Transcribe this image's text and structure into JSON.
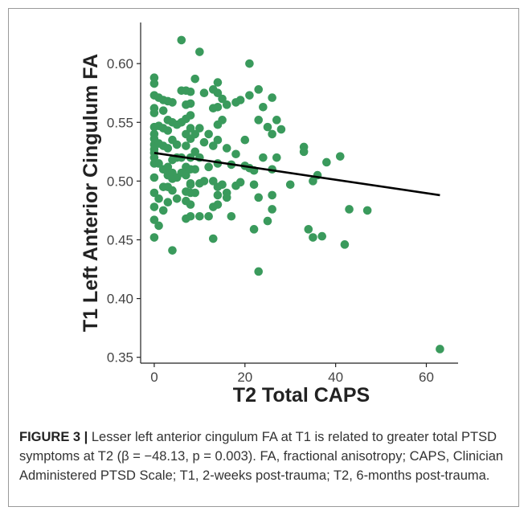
{
  "figure": {
    "caption_lead": "FIGURE 3 |",
    "caption_text": " Lesser left anterior cingulum FA at T1 is related to greater total PTSD symptoms at T2 (β = −48.13, p = 0.003). FA, fractional anisotropy; CAPS, Clinician Administered PTSD Scale; T1, 2-weeks post-trauma; T2, 6-months post-trauma."
  },
  "colors": {
    "points": "#3a9a5c",
    "line": "#000000",
    "axis": "#222222",
    "text": "#333333"
  },
  "chart_data": {
    "type": "scatter",
    "xlabel": "T2 Total CAPS",
    "ylabel": "T1 Left Anterior Cingulum FA",
    "xlim": [
      -3,
      67
    ],
    "ylim": [
      0.345,
      0.635
    ],
    "xticks": [
      0,
      20,
      40,
      60
    ],
    "yticks": [
      0.35,
      0.4,
      0.45,
      0.5,
      0.55,
      0.6
    ],
    "ytick_labels": [
      "0.35",
      "0.40",
      "0.45",
      "0.50",
      "0.55",
      "0.60"
    ],
    "xtick_labels": [
      "0",
      "20",
      "40",
      "60"
    ],
    "grid": false,
    "regression_line": {
      "x": [
        0,
        63
      ],
      "y": [
        0.524,
        0.488
      ]
    },
    "points": {
      "x": [
        0,
        0,
        0,
        0,
        0,
        0,
        0,
        0,
        0,
        0,
        0,
        0,
        0,
        0,
        0,
        0,
        0,
        0,
        1,
        1,
        1,
        1,
        1,
        1,
        2,
        2,
        2,
        2,
        2,
        2,
        2,
        3,
        3,
        3,
        3,
        3,
        3,
        3,
        3,
        4,
        4,
        4,
        4,
        4,
        4,
        4,
        4,
        5,
        5,
        5,
        5,
        5,
        6,
        6,
        6,
        6,
        7,
        7,
        7,
        7,
        7,
        7,
        7,
        7,
        7,
        7,
        8,
        8,
        8,
        8,
        8,
        8,
        8,
        8,
        8,
        8,
        8,
        9,
        9,
        9,
        9,
        9,
        10,
        10,
        10,
        10,
        11,
        11,
        12,
        12,
        13,
        13,
        13,
        13,
        13,
        13,
        14,
        14,
        14,
        14,
        14,
        14,
        14,
        14,
        15,
        15,
        15,
        16,
        16,
        16,
        17,
        17,
        18,
        18,
        18,
        19,
        20,
        20,
        21,
        21,
        21,
        22,
        22,
        23,
        23,
        23,
        23,
        24,
        24,
        25,
        25,
        26,
        26,
        26,
        26,
        26,
        27,
        27,
        28,
        30,
        33,
        33,
        34,
        35,
        35,
        36,
        37,
        38,
        41,
        42,
        43,
        47,
        63,
        2,
        8,
        10,
        12,
        14,
        6,
        11,
        16,
        19,
        22
      ],
      "y": [
        0.588,
        0.583,
        0.573,
        0.562,
        0.546,
        0.54,
        0.531,
        0.527,
        0.52,
        0.515,
        0.503,
        0.49,
        0.478,
        0.467,
        0.452,
        0.524,
        0.536,
        0.558,
        0.571,
        0.547,
        0.532,
        0.515,
        0.485,
        0.462,
        0.569,
        0.56,
        0.545,
        0.53,
        0.51,
        0.495,
        0.475,
        0.568,
        0.552,
        0.543,
        0.528,
        0.512,
        0.505,
        0.495,
        0.482,
        0.567,
        0.55,
        0.535,
        0.518,
        0.507,
        0.502,
        0.492,
        0.441,
        0.548,
        0.531,
        0.52,
        0.503,
        0.485,
        0.62,
        0.577,
        0.55,
        0.52,
        0.577,
        0.565,
        0.553,
        0.54,
        0.53,
        0.512,
        0.505,
        0.491,
        0.483,
        0.468,
        0.576,
        0.566,
        0.556,
        0.545,
        0.536,
        0.52,
        0.51,
        0.498,
        0.49,
        0.48,
        0.47,
        0.587,
        0.54,
        0.525,
        0.51,
        0.49,
        0.61,
        0.545,
        0.52,
        0.47,
        0.575,
        0.5,
        0.54,
        0.47,
        0.578,
        0.562,
        0.53,
        0.5,
        0.478,
        0.451,
        0.584,
        0.575,
        0.563,
        0.548,
        0.535,
        0.515,
        0.488,
        0.48,
        0.57,
        0.552,
        0.497,
        0.565,
        0.528,
        0.49,
        0.514,
        0.47,
        0.567,
        0.523,
        0.496,
        0.569,
        0.535,
        0.513,
        0.6,
        0.573,
        0.511,
        0.509,
        0.459,
        0.578,
        0.552,
        0.486,
        0.423,
        0.563,
        0.52,
        0.546,
        0.466,
        0.571,
        0.54,
        0.51,
        0.488,
        0.476,
        0.552,
        0.52,
        0.544,
        0.497,
        0.529,
        0.525,
        0.459,
        0.5,
        0.452,
        0.505,
        0.453,
        0.516,
        0.521,
        0.446,
        0.476,
        0.475,
        0.357,
        0.51,
        0.497,
        0.498,
        0.512,
        0.495,
        0.507,
        0.533,
        0.486,
        0.499,
        0.497
      ]
    }
  }
}
